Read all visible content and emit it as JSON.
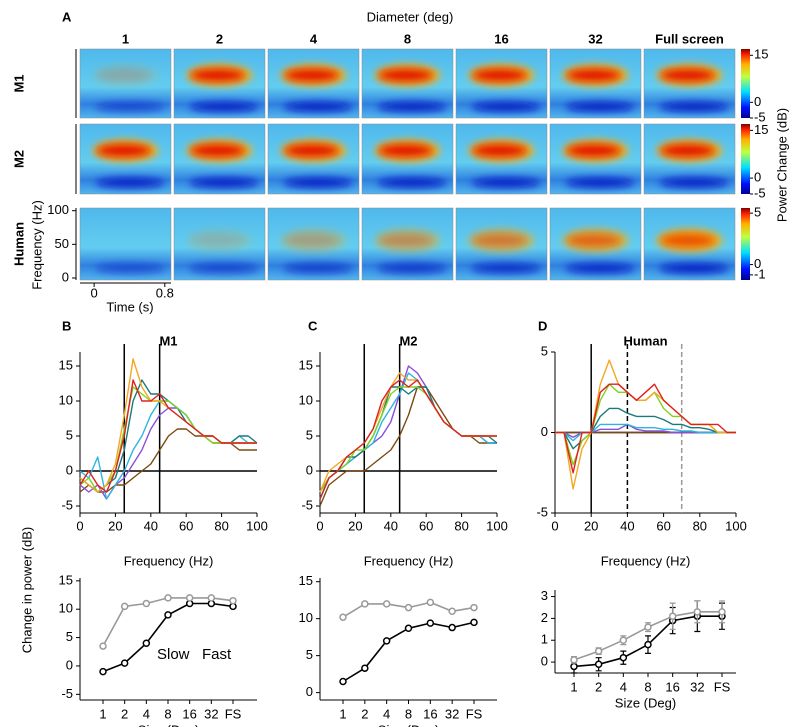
{
  "chart_data": [
    {
      "type": "spectrogram",
      "label": "A",
      "title": "Diameter (deg)",
      "columns": [
        {
          "name": "1",
          "color": "#7b4a12"
        },
        {
          "name": "2",
          "color": "#8a4fd8"
        },
        {
          "name": "4",
          "color": "#2bb5e0"
        },
        {
          "name": "8",
          "color": "#1a7a7a"
        },
        {
          "name": "16",
          "color": "#7ed321"
        },
        {
          "name": "32",
          "color": "#f5a623"
        },
        {
          "name": "Full screen",
          "color": "#e02020"
        }
      ],
      "rows": [
        {
          "name": "M1",
          "clim": [
            -5,
            17
          ],
          "colorbar_ticks": [
            15,
            0,
            -5
          ]
        },
        {
          "name": "M2",
          "clim": [
            -5,
            17
          ],
          "colorbar_ticks": [
            15,
            0,
            -5
          ]
        },
        {
          "name": "Human",
          "clim": [
            -1.5,
            5.5
          ],
          "colorbar_ticks": [
            5,
            0,
            -1
          ]
        }
      ],
      "colorbar_label": "Power Change (dB)",
      "ylabel": "Frequency (Hz)",
      "ylim": [
        -3,
        104
      ],
      "yticks": [
        0,
        50,
        100
      ],
      "xlabel": "Time (s)",
      "xlim": [
        -0.16,
        0.87
      ],
      "xticks": [
        0,
        0.8
      ]
    },
    {
      "type": "line",
      "label": "B",
      "title": "M1",
      "xlabel": "Frequency (Hz)",
      "ylabel": "Change in power (dB)",
      "x": [
        0,
        5,
        10,
        15,
        20,
        25,
        30,
        35,
        40,
        45,
        50,
        55,
        60,
        65,
        70,
        75,
        80,
        85,
        90,
        95,
        100
      ],
      "xlim": [
        0,
        100
      ],
      "xticks": [
        0,
        20,
        40,
        60,
        80,
        100
      ],
      "ylim": [
        -6,
        17
      ],
      "yticks": [
        -5,
        0,
        5,
        10,
        15
      ],
      "vlines": [
        {
          "x": 25,
          "color": "#000",
          "dashed": false
        },
        {
          "x": 45,
          "color": "#000",
          "dashed": false
        }
      ],
      "hlines": [
        0
      ],
      "series": [
        {
          "color": "#7b4a12",
          "values": [
            -3,
            -2,
            -3,
            -3,
            -2,
            -2,
            -1,
            0,
            1,
            3,
            5,
            6,
            6,
            5,
            5,
            4,
            4,
            4,
            3,
            3,
            3
          ]
        },
        {
          "color": "#8a4fd8",
          "values": [
            -2,
            -3,
            -2,
            -4,
            -2,
            -1,
            1,
            3,
            6,
            8,
            9,
            9,
            8,
            6,
            5,
            5,
            4,
            4,
            4,
            4,
            4
          ]
        },
        {
          "color": "#2bb5e0",
          "values": [
            0,
            -1,
            2,
            -4,
            -2,
            0,
            3,
            5,
            8,
            10,
            10,
            9,
            8,
            6,
            5,
            5,
            4,
            4,
            5,
            4,
            4
          ]
        },
        {
          "color": "#1a7a7a",
          "values": [
            -1,
            -2,
            -3,
            -2,
            -1,
            3,
            10,
            13,
            11,
            11,
            10,
            9,
            7,
            6,
            5,
            5,
            4,
            4,
            5,
            5,
            4
          ]
        },
        {
          "color": "#7ed321",
          "values": [
            -2,
            -1,
            -3,
            -2,
            0,
            6,
            12,
            11,
            10,
            10,
            10,
            9,
            8,
            6,
            5,
            4,
            4,
            4,
            4,
            4,
            4
          ]
        },
        {
          "color": "#f5a623",
          "values": [
            -1,
            -2,
            -3,
            -2,
            1,
            8,
            16,
            12,
            10,
            10,
            9,
            8,
            7,
            6,
            5,
            5,
            4,
            4,
            4,
            4,
            4
          ]
        },
        {
          "color": "#e02020",
          "values": [
            -2,
            0,
            -2,
            -3,
            0,
            5,
            13,
            10,
            10,
            11,
            9,
            8,
            7,
            6,
            5,
            5,
            4,
            4,
            4,
            4,
            4
          ]
        }
      ]
    },
    {
      "type": "line",
      "xlabel": "Size (Deg)",
      "categories": [
        "1",
        "2",
        "4",
        "8",
        "16",
        "32",
        "FS"
      ],
      "ylim": [
        -6,
        15.5
      ],
      "yticks": [
        -5,
        0,
        5,
        10,
        15
      ],
      "legend": true,
      "series": [
        {
          "name": "Slow",
          "color": "#000000",
          "values": [
            -1,
            0.5,
            4,
            9,
            11,
            11,
            10.5
          ]
        },
        {
          "name": "Fast",
          "color": "#999999",
          "values": [
            3.5,
            10.5,
            11,
            12,
            12,
            12,
            11.5
          ]
        }
      ]
    },
    {
      "type": "line",
      "label": "C",
      "title": "M2",
      "xlabel": "Frequency (Hz)",
      "x": [
        0,
        5,
        10,
        15,
        20,
        25,
        30,
        35,
        40,
        45,
        50,
        55,
        60,
        65,
        70,
        75,
        80,
        85,
        90,
        95,
        100
      ],
      "xlim": [
        0,
        100
      ],
      "xticks": [
        0,
        20,
        40,
        60,
        80,
        100
      ],
      "ylim": [
        -6,
        17
      ],
      "yticks": [
        -5,
        0,
        5,
        10,
        15
      ],
      "vlines": [
        {
          "x": 25,
          "color": "#000",
          "dashed": false
        },
        {
          "x": 45,
          "color": "#000",
          "dashed": false
        }
      ],
      "hlines": [
        0
      ],
      "series": [
        {
          "color": "#7b4a12",
          "values": [
            -5,
            -2,
            -1,
            0,
            0,
            0,
            1,
            2,
            3,
            5,
            8,
            12,
            12,
            10,
            8,
            6,
            5,
            5,
            4,
            4,
            4
          ]
        },
        {
          "color": "#8a4fd8",
          "values": [
            -4,
            -1,
            0,
            1,
            2,
            3,
            4,
            5,
            7,
            11,
            15,
            14,
            12,
            9,
            7,
            6,
            5,
            5,
            5,
            4,
            4
          ]
        },
        {
          "color": "#2bb5e0",
          "values": [
            -4,
            -1,
            0,
            1,
            2,
            3,
            4,
            7,
            9,
            11,
            14,
            13,
            11,
            9,
            7,
            6,
            5,
            5,
            5,
            4,
            4
          ]
        },
        {
          "color": "#1a7a7a",
          "values": [
            -3,
            -1,
            0,
            2,
            2,
            3,
            5,
            8,
            12,
            12,
            11,
            12,
            12,
            9,
            7,
            6,
            5,
            5,
            5,
            5,
            4
          ]
        },
        {
          "color": "#7ed321",
          "values": [
            -3,
            -1,
            0,
            1,
            3,
            3,
            5,
            8,
            11,
            12,
            12,
            12,
            11,
            9,
            7,
            6,
            5,
            5,
            5,
            5,
            5
          ]
        },
        {
          "color": "#f5a623",
          "values": [
            -3,
            0,
            1,
            2,
            3,
            4,
            6,
            9,
            12,
            14,
            13,
            13,
            11,
            9,
            7,
            6,
            5,
            5,
            5,
            5,
            5
          ]
        },
        {
          "color": "#e02020",
          "values": [
            -4,
            -1,
            0,
            2,
            3,
            4,
            6,
            10,
            12,
            13,
            12,
            13,
            11,
            9,
            7,
            6,
            5,
            5,
            5,
            5,
            5
          ]
        }
      ]
    },
    {
      "type": "line",
      "xlabel": "Size (Deg)",
      "categories": [
        "1",
        "2",
        "4",
        "8",
        "16",
        "32",
        "FS"
      ],
      "ylim": [
        -1,
        15.5
      ],
      "yticks": [
        0,
        5,
        10,
        15
      ],
      "series": [
        {
          "color": "#000000",
          "values": [
            1.5,
            3.3,
            7,
            8.7,
            9.4,
            8.8,
            9.5
          ]
        },
        {
          "color": "#999999",
          "values": [
            10.2,
            12,
            12,
            11.5,
            12.2,
            11,
            11.5
          ]
        }
      ]
    },
    {
      "type": "line",
      "label": "D",
      "title": "Human",
      "xlabel": "Frequency (Hz)",
      "x": [
        0,
        5,
        10,
        15,
        20,
        25,
        30,
        35,
        40,
        45,
        50,
        55,
        60,
        65,
        70,
        75,
        80,
        85,
        90,
        95,
        100
      ],
      "xlim": [
        0,
        100
      ],
      "xticks": [
        0,
        20,
        40,
        60,
        80,
        100
      ],
      "ylim": [
        -5,
        5
      ],
      "yticks": [
        -5,
        0,
        5
      ],
      "vlines": [
        {
          "x": 20,
          "color": "#000",
          "dashed": false
        },
        {
          "x": 40,
          "color": "#000",
          "dashed": true
        },
        {
          "x": 70,
          "color": "#999",
          "dashed": true
        }
      ],
      "hlines": [
        0
      ],
      "series": [
        {
          "color": "#7b4a12",
          "values": [
            0,
            0,
            0,
            0,
            0,
            0,
            0,
            0,
            0,
            0,
            0,
            0,
            0,
            0,
            0,
            0,
            0,
            0,
            0,
            0,
            0
          ]
        },
        {
          "color": "#8a4fd8",
          "values": [
            0,
            0,
            -0.3,
            0,
            0,
            0.2,
            0.2,
            0.2,
            0.5,
            0.2,
            0.1,
            0.1,
            0.1,
            0,
            0,
            0,
            0,
            0,
            0,
            0,
            0
          ]
        },
        {
          "color": "#2bb5e0",
          "values": [
            0,
            0,
            -0.5,
            0,
            0,
            0.5,
            0.5,
            0.5,
            0.5,
            0.3,
            0.3,
            0.3,
            0.2,
            0.2,
            0.1,
            0.1,
            0,
            0,
            0,
            0,
            0
          ]
        },
        {
          "color": "#1a7a7a",
          "values": [
            0,
            0,
            -1,
            -0.5,
            0,
            1,
            1.5,
            1.5,
            1.2,
            1,
            1,
            1,
            0.8,
            0.5,
            0.5,
            0.3,
            0.3,
            0.2,
            0,
            0,
            0
          ]
        },
        {
          "color": "#7ed321",
          "values": [
            0,
            0,
            -2,
            -0.5,
            0,
            2,
            3,
            2.5,
            2.5,
            2,
            2,
            2.5,
            1.5,
            1,
            1,
            0.5,
            0.5,
            0.5,
            0,
            0,
            0
          ]
        },
        {
          "color": "#f5a623",
          "values": [
            0,
            0,
            -3.5,
            -1,
            0,
            3,
            4.5,
            3,
            2.5,
            2,
            2,
            2.5,
            2,
            1.5,
            1,
            0.5,
            0.5,
            0.5,
            0,
            0,
            0
          ]
        },
        {
          "color": "#e02020",
          "values": [
            0,
            0,
            -2.5,
            0,
            0,
            2.5,
            3,
            3,
            2.5,
            2,
            2.5,
            3,
            2,
            1.5,
            1,
            0.5,
            0.5,
            0.5,
            0.5,
            0,
            0
          ]
        }
      ]
    },
    {
      "type": "line",
      "xlabel": "Size (Deg)",
      "categories": [
        "1",
        "2",
        "4",
        "8",
        "16",
        "32",
        "FS"
      ],
      "ylim": [
        -0.5,
        3.3
      ],
      "yticks": [
        0,
        1,
        2,
        3
      ],
      "series": [
        {
          "color": "#000000",
          "values": [
            -0.2,
            -0.1,
            0.2,
            0.8,
            1.9,
            2.1,
            2.1
          ],
          "errors": [
            0.3,
            0.3,
            0.3,
            0.4,
            0.6,
            0.7,
            0.6
          ]
        },
        {
          "color": "#999999",
          "values": [
            0.1,
            0.5,
            1,
            1.6,
            2.1,
            2.3,
            2.3
          ],
          "errors": [
            0.15,
            0.15,
            0.2,
            0.2,
            0.6,
            0.5,
            0.5
          ]
        }
      ]
    }
  ]
}
